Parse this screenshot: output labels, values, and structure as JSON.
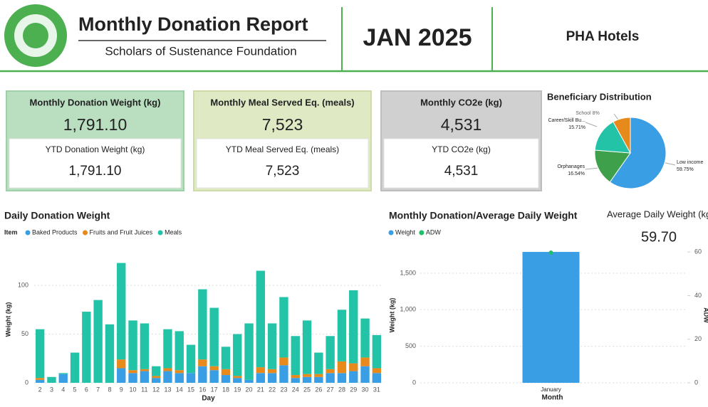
{
  "header": {
    "title": "Monthly Donation Report",
    "subtitle": "Scholars of Sustenance Foundation",
    "period": "JAN 2025",
    "client": "PHA Hotels"
  },
  "kpis": [
    {
      "title": "Monthly Donation Weight (kg)",
      "value": "1,791.10",
      "ytd_title": "YTD Donation Weight (kg)",
      "ytd_value": "1,791.10"
    },
    {
      "title": "Monthly Meal Served Eq. (meals)",
      "value": "7,523",
      "ytd_title": "YTD Meal Served Eq. (meals)",
      "ytd_value": "7,523"
    },
    {
      "title": "Monthly CO2e (kg)",
      "value": "4,531",
      "ytd_title": "YTD CO2e (kg)",
      "ytd_value": "4,531"
    }
  ],
  "avg_daily": {
    "title": "Average Daily Weight (kg)",
    "value": "59.70"
  },
  "chart_data": [
    {
      "type": "pie",
      "title": "Beneficiary Distribution",
      "categories": [
        "Low income",
        "Orphanages",
        "Career/Skill Bu...",
        "School"
      ],
      "values": [
        59.75,
        16.54,
        15.71,
        8
      ],
      "value_labels": [
        "59.75%",
        "16.54%",
        "15.71%",
        "8%"
      ],
      "colors": [
        "#3a9ee4",
        "#3ea04a",
        "#22c3a6",
        "#e8891c"
      ]
    },
    {
      "type": "bar",
      "stacked": true,
      "title": "Daily Donation Weight",
      "legend_title": "Item",
      "categories": [
        "2",
        "3",
        "4",
        "5",
        "6",
        "7",
        "8",
        "9",
        "10",
        "11",
        "12",
        "13",
        "14",
        "15",
        "16",
        "17",
        "18",
        "19",
        "20",
        "21",
        "22",
        "23",
        "24",
        "25",
        "26",
        "27",
        "28",
        "29",
        "30",
        "31"
      ],
      "series": [
        {
          "name": "Baked Products",
          "color": "#3a9ee4",
          "values": [
            3,
            0,
            9,
            0,
            0,
            0,
            0,
            15,
            10,
            12,
            5,
            12,
            10,
            10,
            17,
            13,
            8,
            5,
            3,
            10,
            10,
            18,
            5,
            6,
            6,
            10,
            10,
            12,
            17,
            10
          ]
        },
        {
          "name": "Fruits and Fruit Juices",
          "color": "#e8891c",
          "values": [
            2,
            0,
            0,
            0,
            0,
            0,
            0,
            9,
            3,
            2,
            2,
            3,
            3,
            0,
            7,
            4,
            6,
            2,
            0,
            6,
            4,
            8,
            3,
            3,
            3,
            4,
            12,
            8,
            9,
            5
          ]
        },
        {
          "name": "Meals",
          "color": "#22c3a6",
          "values": [
            50,
            6,
            1,
            31,
            73,
            85,
            60,
            99,
            51,
            47,
            10,
            40,
            40,
            29,
            72,
            60,
            23,
            43,
            58,
            99,
            47,
            62,
            40,
            55,
            22,
            34,
            53,
            75,
            40,
            34
          ]
        }
      ],
      "xlabel": "Day",
      "ylabel": "Weight (kg)",
      "ylim": [
        0,
        130
      ],
      "yticks": [
        0,
        50,
        100
      ],
      "grid": true
    },
    {
      "type": "combo",
      "title": "Monthly Donation/Average Daily Weight",
      "categories": [
        "January"
      ],
      "series": [
        {
          "name": "Weight",
          "color": "#3a9ee4",
          "kind": "bar",
          "values": [
            1791.1
          ]
        },
        {
          "name": "ADW",
          "color": "#1fbf6a",
          "kind": "point",
          "axis": "y2",
          "values": [
            59.7
          ]
        }
      ],
      "xlabel": "Month",
      "ylabel": "Weight (kg)",
      "y2label": "ADW",
      "ylim": [
        0,
        1850
      ],
      "yticks": [
        0,
        500,
        {
          "value": 1000,
          "label": "1,000"
        },
        {
          "value": 1500,
          "label": "1,500"
        }
      ],
      "y2lim": [
        0,
        62
      ],
      "y2ticks": [
        0,
        20,
        40,
        60
      ],
      "grid": true
    }
  ]
}
